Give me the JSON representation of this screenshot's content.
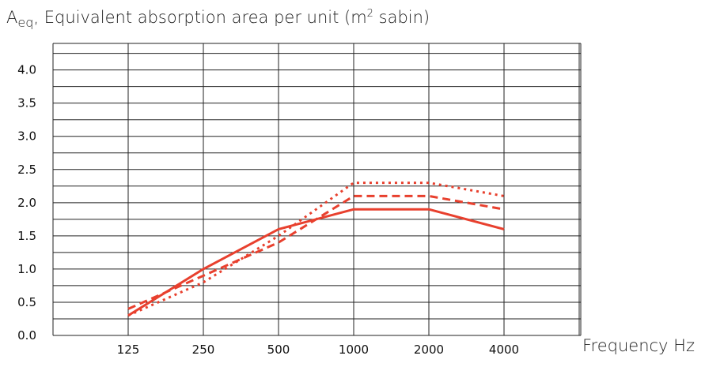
{
  "chart_data": {
    "type": "line",
    "ylabel": {
      "symbol": "A",
      "subscript": "eq",
      "text_before_sup": ", Equivalent absorption area per unit (m",
      "superscript": "2",
      "text_after_sup": " sabin)"
    },
    "xlabel": "Frequency Hz",
    "categories": [
      "125",
      "250",
      "500",
      "1000",
      "2000",
      "4000"
    ],
    "y_ticks": [
      "0.0",
      "0.5",
      "1.0",
      "1.5",
      "2.0",
      "2.5",
      "3.0",
      "3.5",
      "4.0"
    ],
    "ylim": [
      0,
      4.0
    ],
    "grid": true,
    "color": "#e8402e",
    "series": [
      {
        "style": "solid",
        "values": [
          0.3,
          1.0,
          1.6,
          1.9,
          1.9,
          1.6
        ]
      },
      {
        "style": "dashed",
        "values": [
          0.4,
          0.9,
          1.4,
          2.1,
          2.1,
          1.9
        ]
      },
      {
        "style": "dotted",
        "values": [
          0.3,
          0.8,
          1.5,
          2.3,
          2.3,
          2.1
        ]
      }
    ]
  }
}
